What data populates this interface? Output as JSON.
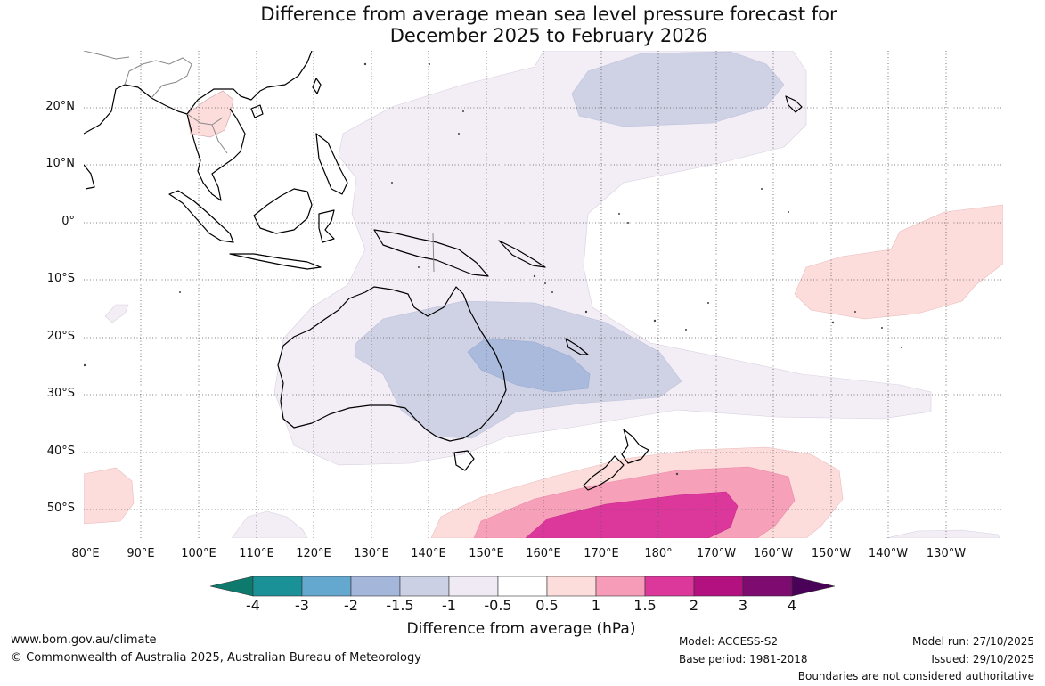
{
  "title": {
    "line1": "Difference from average mean sea level pressure forecast for",
    "line2": "December 2025 to February 2026"
  },
  "map": {
    "lat_labels": [
      "20°N",
      "10°N",
      "0°",
      "10°S",
      "20°S",
      "30°S",
      "40°S",
      "50°S"
    ],
    "lon_labels": [
      "80°E",
      "90°E",
      "100°E",
      "110°E",
      "120°E",
      "130°E",
      "140°E",
      "150°E",
      "160°E",
      "170°E",
      "180°",
      "170°W",
      "160°W",
      "150°W",
      "140°W",
      "130°W"
    ]
  },
  "colorbar": {
    "labels": [
      "-4",
      "-3",
      "-2",
      "-1.5",
      "-1",
      "-0.5",
      "0.5",
      "1",
      "1.5",
      "2",
      "3",
      "4"
    ],
    "colors": [
      "#0e7a6e",
      "#1a9196",
      "#64a8d0",
      "#a5b6db",
      "#ccd0e4",
      "#efeaf4",
      "#ffffff",
      "#fddcdc",
      "#f79cb8",
      "#dc389c",
      "#b3117f",
      "#7e0b70",
      "#4a0158"
    ],
    "title": "Difference from average (hPa)"
  },
  "footer": {
    "website": "www.bom.gov.au/climate",
    "copyright": "© Commonwealth of Australia 2025, Australian Bureau of Meteorology",
    "model": "Model: ACCESS-S2",
    "base_period": "Base period: 1981-2018",
    "model_run": "Model run: 27/10/2025",
    "issued": "Issued: 29/10/2025",
    "disclaimer": "Boundaries are not considered authoritative"
  }
}
